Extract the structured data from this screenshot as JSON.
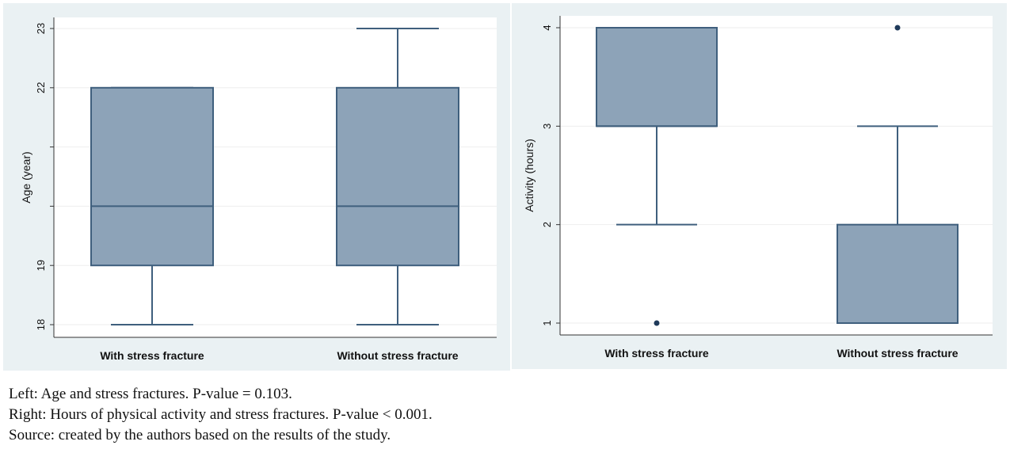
{
  "chart_data": [
    {
      "type": "box",
      "ylabel": "Age (year)",
      "ylim": [
        18,
        23
      ],
      "yticks": [
        18,
        19,
        20,
        21,
        22,
        23
      ],
      "ytick_labels": [
        "18",
        "19",
        "",
        "",
        "22",
        "23"
      ],
      "grid": true,
      "categories": [
        "With stress fracture",
        "Without stress fracture"
      ],
      "boxes": [
        {
          "whisker_low": 18,
          "q1": 19,
          "median": 20,
          "q3": 22,
          "whisker_high": 22,
          "outliers": []
        },
        {
          "whisker_low": 18,
          "q1": 19,
          "median": 20,
          "q3": 22,
          "whisker_high": 23,
          "outliers": []
        }
      ]
    },
    {
      "type": "box",
      "ylabel": "Activity (hours)",
      "ylim": [
        1,
        4
      ],
      "yticks": [
        1,
        2,
        3,
        4
      ],
      "ytick_labels": [
        "1",
        "2",
        "3",
        "4"
      ],
      "grid": true,
      "categories": [
        "With stress fracture",
        "Without stress fracture"
      ],
      "boxes": [
        {
          "whisker_low": 2,
          "q1": 3,
          "median": 3,
          "q3": 4,
          "whisker_high": 4,
          "outliers": [
            1
          ]
        },
        {
          "whisker_low": 1,
          "q1": 1,
          "median": 1,
          "q3": 2,
          "whisker_high": 3,
          "outliers": [
            4
          ]
        }
      ]
    }
  ],
  "caption": {
    "line1": "Left: Age and stress fractures. P-value = 0.103.",
    "line2": "Right: Hours of physical activity and stress fractures. P-value < 0.001.",
    "line3": "Source: created by the authors based on the results of the study."
  },
  "colors": {
    "box_fill": "#8da3b8",
    "box_stroke": "#3f5f7d",
    "outlier": "#1f3a5a",
    "grid": "#eeeeee",
    "plot_bg": "#ffffff",
    "panel_bg": "#eaf1f3"
  }
}
